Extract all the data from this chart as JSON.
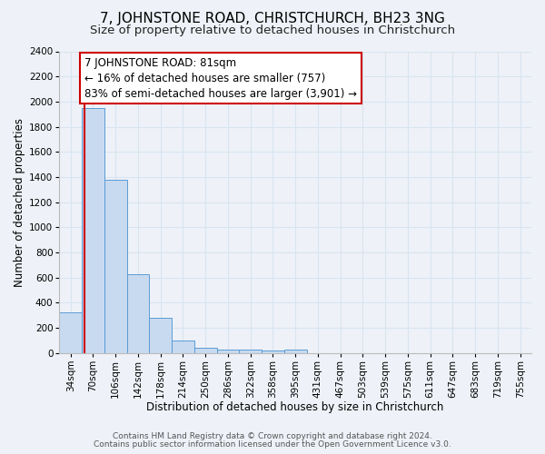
{
  "title": "7, JOHNSTONE ROAD, CHRISTCHURCH, BH23 3NG",
  "subtitle": "Size of property relative to detached houses in Christchurch",
  "xlabel": "Distribution of detached houses by size in Christchurch",
  "ylabel": "Number of detached properties",
  "bar_labels": [
    "34sqm",
    "70sqm",
    "106sqm",
    "142sqm",
    "178sqm",
    "214sqm",
    "250sqm",
    "286sqm",
    "322sqm",
    "358sqm",
    "395sqm",
    "431sqm",
    "467sqm",
    "503sqm",
    "539sqm",
    "575sqm",
    "611sqm",
    "647sqm",
    "683sqm",
    "719sqm",
    "755sqm"
  ],
  "bar_values": [
    320,
    1950,
    1380,
    630,
    280,
    100,
    45,
    30,
    25,
    20,
    25,
    0,
    0,
    0,
    0,
    0,
    0,
    0,
    0,
    0,
    0
  ],
  "bar_color": "#c8daf0",
  "bar_edge_color": "#5b9bd5",
  "vline_x": 0.62,
  "vline_color": "#cc0000",
  "ylim": [
    0,
    2400
  ],
  "yticks": [
    0,
    200,
    400,
    600,
    800,
    1000,
    1200,
    1400,
    1600,
    1800,
    2000,
    2200,
    2400
  ],
  "annotation_box_text": "7 JOHNSTONE ROAD: 81sqm\n← 16% of detached houses are smaller (757)\n83% of semi-detached houses are larger (3,901) →",
  "footer_line1": "Contains HM Land Registry data © Crown copyright and database right 2024.",
  "footer_line2": "Contains public sector information licensed under the Open Government Licence v3.0.",
  "background_color": "#eef2f8",
  "grid_color": "#d8e4f0",
  "title_fontsize": 11,
  "subtitle_fontsize": 9.5,
  "axis_label_fontsize": 8.5,
  "tick_fontsize": 7.5,
  "annotation_fontsize": 8.5,
  "footer_fontsize": 6.5
}
